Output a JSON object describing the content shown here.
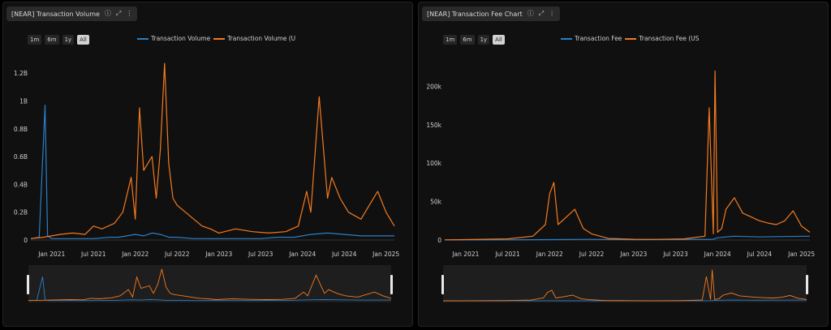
{
  "colors": {
    "volume": "#2a7fc9",
    "usd": "#f47a1f",
    "navigator_bg": "#1e1e1e"
  },
  "panels": [
    {
      "title": "[NEAR] Transaction Volume",
      "icons": [
        "info-icon",
        "expand-icon",
        "more-icon"
      ],
      "range_buttons": [
        "1m",
        "6m",
        "1y",
        "All"
      ],
      "active_range": "All",
      "legend": [
        "Transaction Volume",
        "Transaction Volume (U"
      ]
    },
    {
      "title": "[NEAR] Transaction Fee Chart",
      "icons": [
        "info-icon",
        "expand-icon",
        "more-icon"
      ],
      "range_buttons": [
        "1m",
        "6m",
        "1y",
        "All"
      ],
      "active_range": "All",
      "legend": [
        "Transaction Fee",
        "Transaction Fee (US"
      ]
    }
  ],
  "chart_data": [
    {
      "type": "line",
      "title": "[NEAR] Transaction Volume",
      "series": [
        {
          "name": "Transaction Volume",
          "color": "#2a7fc9",
          "x": [
            2020.75,
            2020.85,
            2020.92,
            2020.95,
            2021.0,
            2021.1,
            2021.3,
            2021.5,
            2021.7,
            2021.8,
            2021.9,
            2022.0,
            2022.1,
            2022.2,
            2022.3,
            2022.4,
            2022.5,
            2022.7,
            2022.9,
            2023.1,
            2023.3,
            2023.5,
            2023.7,
            2023.9,
            2024.0,
            2024.1,
            2024.3,
            2024.5,
            2024.7,
            2024.9,
            2025.1
          ],
          "y": [
            0.01,
            0.02,
            0.97,
            0.03,
            0.01,
            0.01,
            0.01,
            0.01,
            0.02,
            0.02,
            0.03,
            0.04,
            0.03,
            0.05,
            0.04,
            0.02,
            0.02,
            0.01,
            0.01,
            0.01,
            0.01,
            0.01,
            0.02,
            0.02,
            0.03,
            0.04,
            0.05,
            0.04,
            0.03,
            0.03,
            0.03
          ]
        },
        {
          "name": "Transaction Volume (USD)",
          "color": "#f47a1f",
          "x": [
            2020.75,
            2020.9,
            2021.0,
            2021.1,
            2021.25,
            2021.4,
            2021.5,
            2021.6,
            2021.75,
            2021.85,
            2021.95,
            2022.0,
            2022.05,
            2022.1,
            2022.2,
            2022.25,
            2022.3,
            2022.35,
            2022.4,
            2022.45,
            2022.5,
            2022.6,
            2022.7,
            2022.8,
            2022.9,
            2023.0,
            2023.2,
            2023.4,
            2023.6,
            2023.8,
            2023.95,
            2024.05,
            2024.1,
            2024.2,
            2024.3,
            2024.35,
            2024.45,
            2024.55,
            2024.7,
            2024.8,
            2024.9,
            2025.0,
            2025.1
          ],
          "y": [
            0.01,
            0.02,
            0.03,
            0.04,
            0.05,
            0.04,
            0.1,
            0.08,
            0.12,
            0.2,
            0.45,
            0.15,
            0.95,
            0.5,
            0.6,
            0.3,
            0.65,
            1.27,
            0.55,
            0.3,
            0.25,
            0.2,
            0.15,
            0.1,
            0.08,
            0.05,
            0.08,
            0.06,
            0.05,
            0.06,
            0.1,
            0.35,
            0.2,
            1.03,
            0.3,
            0.45,
            0.3,
            0.2,
            0.15,
            0.25,
            0.35,
            0.2,
            0.1
          ]
        }
      ],
      "yticks": [
        "0",
        "0.2B",
        "0.4B",
        "0.6B",
        "0.8B",
        "1B",
        "1.2B"
      ],
      "ylim": [
        0,
        1.3
      ],
      "xticks": [
        "Jan 2021",
        "Jul 2021",
        "Jan 2022",
        "Jul 2022",
        "Jan 2023",
        "Jul 2023",
        "Jan 2024",
        "Jul 2024",
        "Jan 2025"
      ],
      "xlim": [
        2020.75,
        2025.1
      ]
    },
    {
      "type": "line",
      "title": "[NEAR] Transaction Fee Chart",
      "series": [
        {
          "name": "Transaction Fee",
          "color": "#2a7fc9",
          "x": [
            2020.75,
            2021.5,
            2022.0,
            2022.5,
            2023.0,
            2023.5,
            2023.95,
            2024.0,
            2024.2,
            2024.5,
            2024.8,
            2025.1
          ],
          "y": [
            100,
            200,
            500,
            800,
            400,
            600,
            900,
            3000,
            5000,
            4000,
            4500,
            5000
          ]
        },
        {
          "name": "Transaction Fee (USD)",
          "color": "#f47a1f",
          "x": [
            2020.75,
            2021.0,
            2021.5,
            2021.8,
            2021.95,
            2022.0,
            2022.05,
            2022.1,
            2022.2,
            2022.3,
            2022.4,
            2022.5,
            2022.7,
            2023.0,
            2023.3,
            2023.6,
            2023.85,
            2023.9,
            2023.95,
            2023.97,
            2024.0,
            2024.05,
            2024.1,
            2024.2,
            2024.3,
            2024.4,
            2024.5,
            2024.6,
            2024.7,
            2024.8,
            2024.9,
            2025.0,
            2025.1
          ],
          "y": [
            200,
            500,
            1500,
            5000,
            20000,
            60000,
            75000,
            20000,
            30000,
            40000,
            15000,
            8000,
            2000,
            1000,
            800,
            1500,
            5000,
            172000,
            8000,
            220000,
            10000,
            15000,
            40000,
            55000,
            35000,
            30000,
            25000,
            22000,
            20000,
            25000,
            38000,
            18000,
            10000
          ]
        }
      ],
      "yticks": [
        "0",
        "50k",
        "100k",
        "150k",
        "200k"
      ],
      "ylim": [
        0,
        230000
      ],
      "xticks": [
        "Jan 2021",
        "Jul 2021",
        "Jan 2022",
        "Jul 2022",
        "Jan 2023",
        "Jul 2023",
        "Jan 2024",
        "Jul 2024",
        "Jan 2025"
      ],
      "xlim": [
        2020.75,
        2025.1
      ]
    }
  ]
}
